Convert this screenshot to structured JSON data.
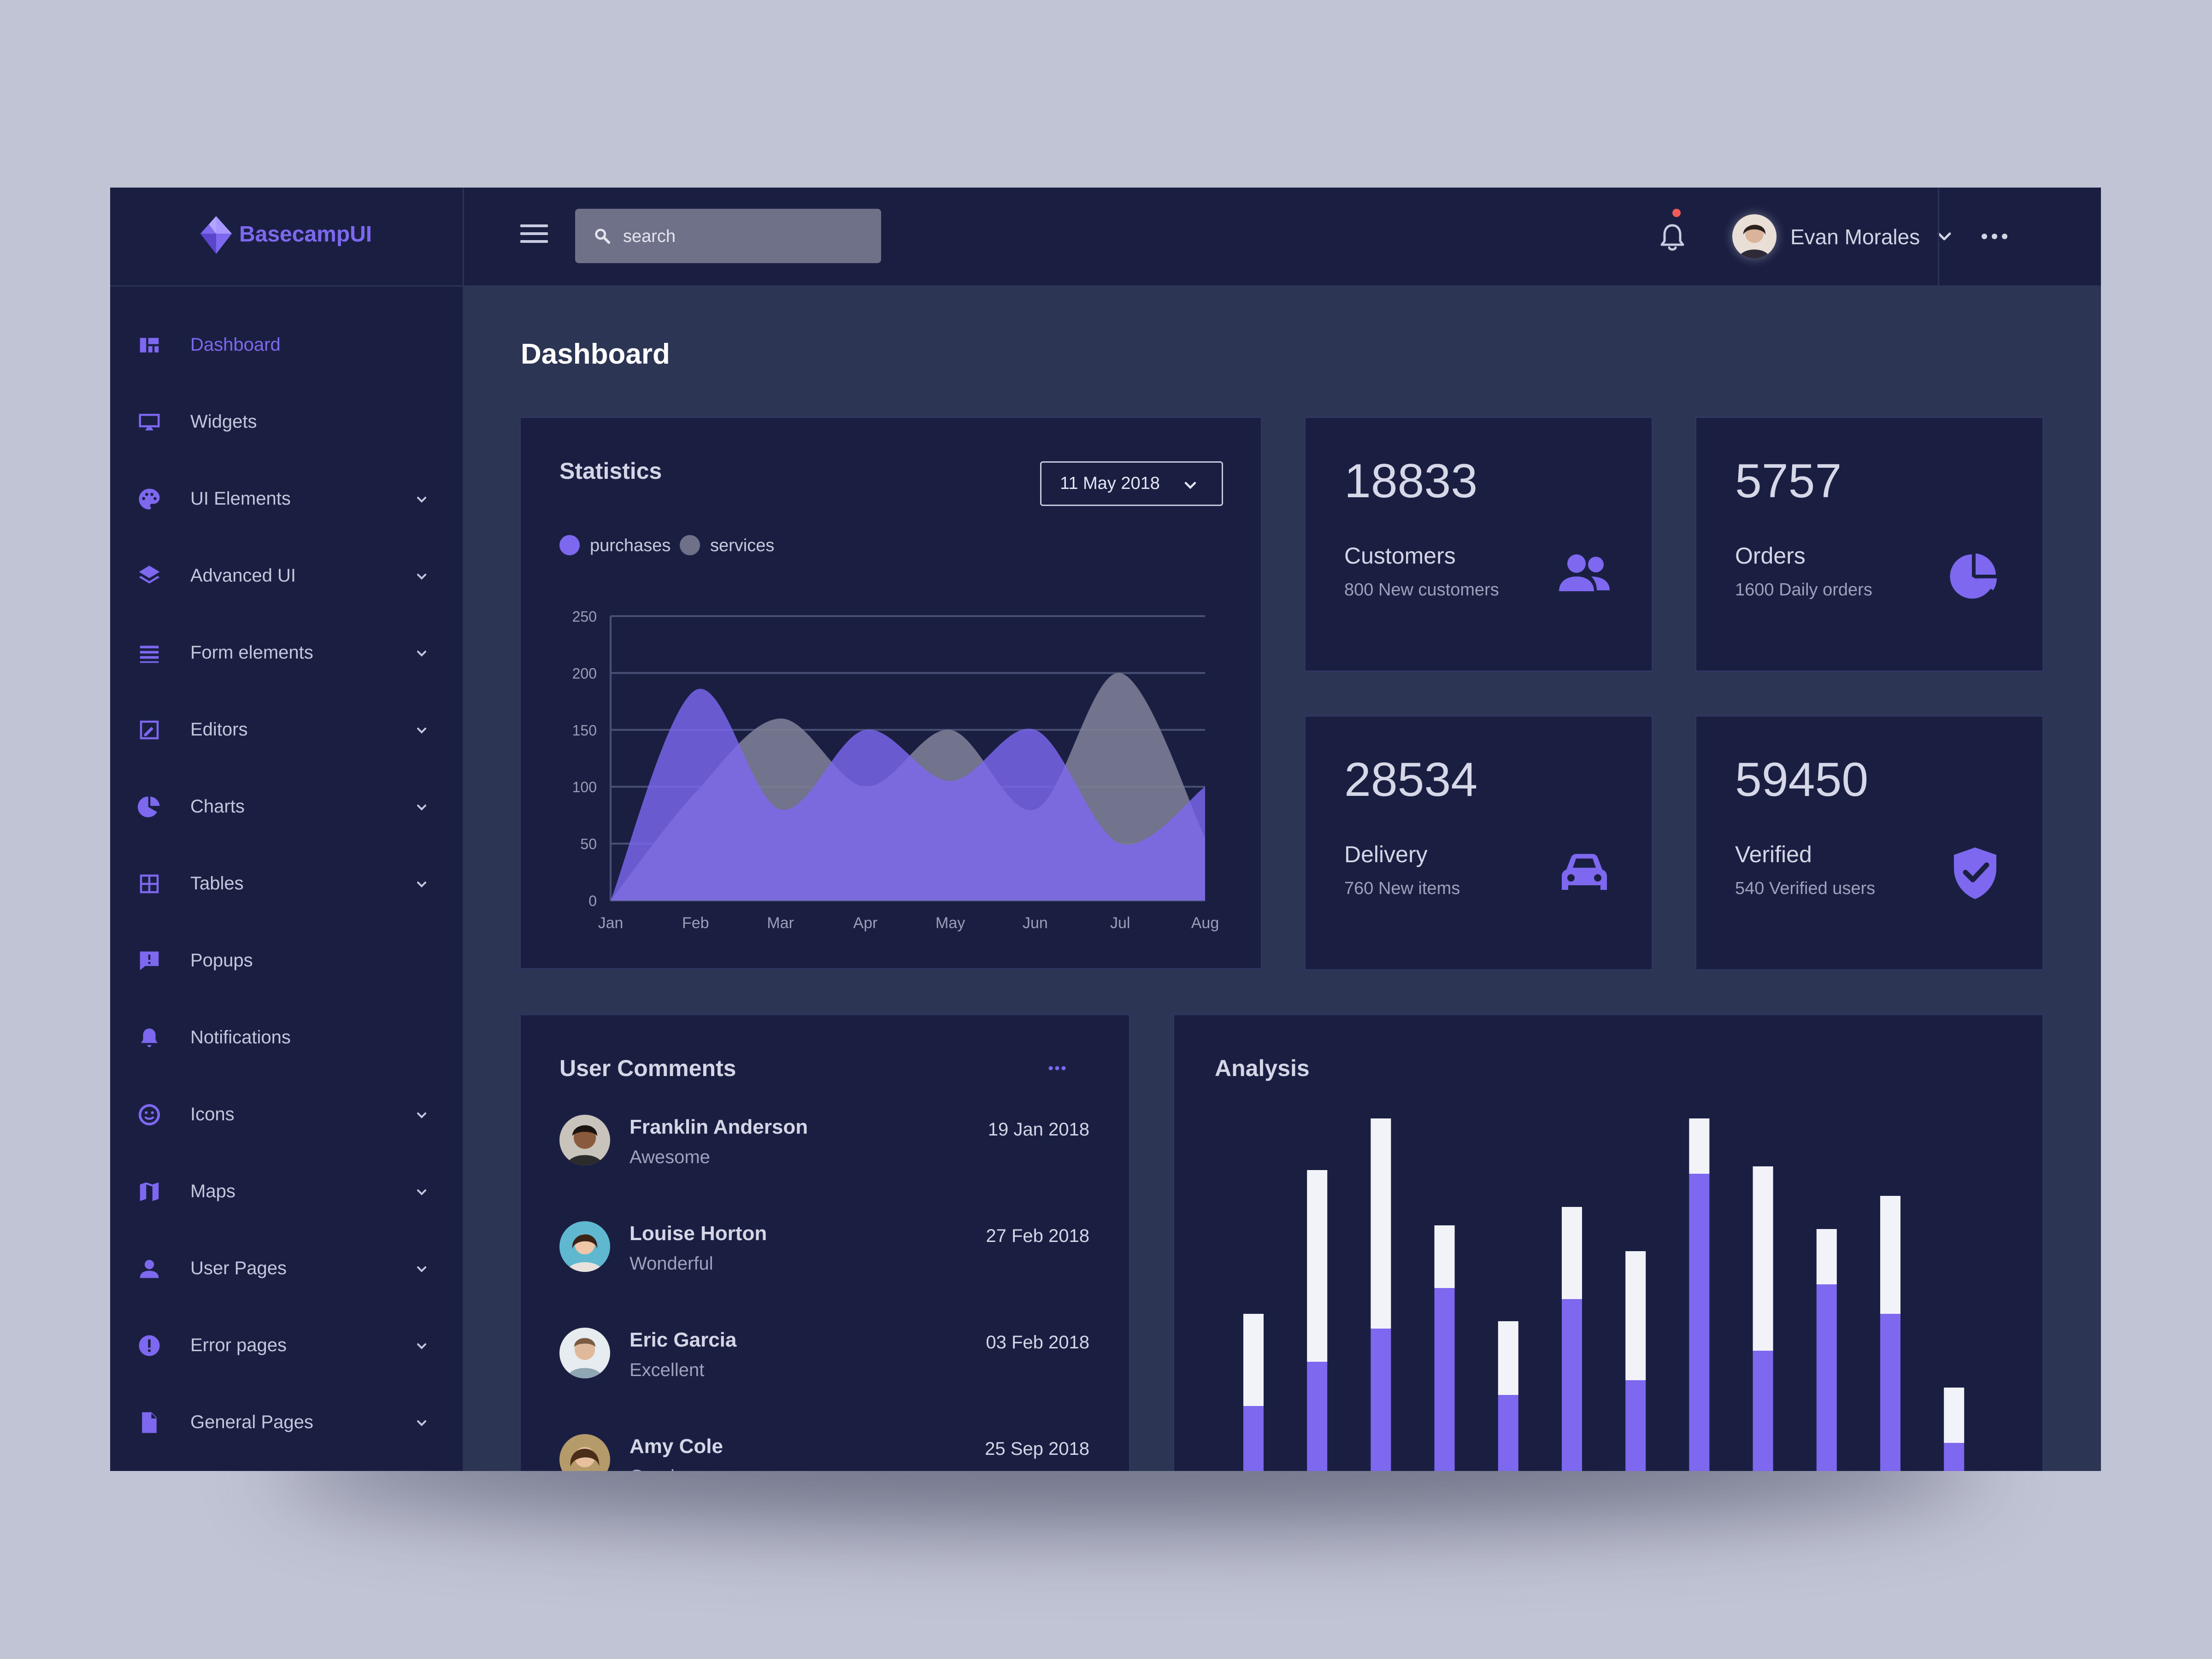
{
  "brand": {
    "name": "BasecampUI"
  },
  "search": {
    "placeholder": "search"
  },
  "user": {
    "name": "Evan Morales"
  },
  "sidebar": {
    "items": [
      {
        "label": "Dashboard",
        "icon": "dashboard-icon",
        "active": true,
        "expandable": false
      },
      {
        "label": "Widgets",
        "icon": "monitor-icon",
        "expandable": false
      },
      {
        "label": "UI Elements",
        "icon": "palette-icon",
        "expandable": true
      },
      {
        "label": "Advanced UI",
        "icon": "layers-icon",
        "expandable": true
      },
      {
        "label": "Form elements",
        "icon": "list-icon",
        "expandable": true
      },
      {
        "label": "Editors",
        "icon": "edit-icon",
        "expandable": true
      },
      {
        "label": "Charts",
        "icon": "pie-chart-icon",
        "expandable": true
      },
      {
        "label": "Tables",
        "icon": "table-icon",
        "expandable": true
      },
      {
        "label": "Popups",
        "icon": "message-alert-icon",
        "expandable": false
      },
      {
        "label": "Notifications",
        "icon": "bell-icon",
        "expandable": false
      },
      {
        "label": "Icons",
        "icon": "smiley-icon",
        "expandable": true
      },
      {
        "label": "Maps",
        "icon": "map-icon",
        "expandable": true
      },
      {
        "label": "User Pages",
        "icon": "user-icon",
        "expandable": true
      },
      {
        "label": "Error pages",
        "icon": "error-icon",
        "expandable": true
      },
      {
        "label": "General Pages",
        "icon": "file-icon",
        "expandable": true
      }
    ]
  },
  "page": {
    "title": "Dashboard"
  },
  "statistics": {
    "title": "Statistics",
    "date": "11 May 2018",
    "legend": [
      {
        "label": "purchases",
        "color": "#7d68ef"
      },
      {
        "label": "services",
        "color": "#6f7189"
      }
    ]
  },
  "stats": [
    {
      "value": "18833",
      "label": "Customers",
      "sub": "800 New customers",
      "icon": "users-icon"
    },
    {
      "value": "5757",
      "label": "Orders",
      "sub": "1600 Daily orders",
      "icon": "pie-chart-icon"
    },
    {
      "value": "28534",
      "label": "Delivery",
      "sub": "760 New items",
      "icon": "car-icon"
    },
    {
      "value": "59450",
      "label": "Verified",
      "sub": "540 Verified users",
      "icon": "shield-check-icon"
    }
  ],
  "comments": {
    "title": "User Comments",
    "items": [
      {
        "name": "Franklin Anderson",
        "text": "Awesome",
        "date": "19 Jan 2018"
      },
      {
        "name": "Louise Horton",
        "text": "Wonderful",
        "date": "27 Feb 2018"
      },
      {
        "name": "Eric Garcia",
        "text": "Excellent",
        "date": "03 Feb 2018"
      },
      {
        "name": "Amy Cole",
        "text": "Good",
        "date": "25 Sep 2018"
      }
    ]
  },
  "analysis": {
    "title": "Analysis"
  },
  "colors": {
    "accent": "#7d68ef",
    "panel": "#1a1f42",
    "background": "#2c3553",
    "services": "#6f7189",
    "bar_top": "#f2f3f8"
  },
  "chart_data": [
    {
      "type": "area",
      "title": "Statistics",
      "categories": [
        "Jan",
        "Feb",
        "Mar",
        "Apr",
        "May",
        "Jun",
        "Jul",
        "Aug"
      ],
      "ylim": [
        0,
        250
      ],
      "yticks": [
        0,
        50,
        100,
        150,
        200,
        250
      ],
      "grid": true,
      "legend": "top-left",
      "series": [
        {
          "name": "purchases",
          "color": "#7d68ef",
          "values": [
            0,
            185,
            80,
            150,
            105,
            150,
            50,
            100
          ]
        },
        {
          "name": "services",
          "color": "#6f7189",
          "values": [
            0,
            95,
            160,
            100,
            150,
            80,
            200,
            55
          ]
        }
      ]
    },
    {
      "type": "bar",
      "title": "Analysis",
      "stacked": true,
      "grid": false,
      "ylim": [
        0,
        100
      ],
      "series": [
        {
          "name": "",
          "color": "#7d68ef",
          "values": [
            19,
            31,
            40,
            51,
            22,
            48,
            26,
            82,
            34,
            52,
            44,
            9
          ]
        },
        {
          "name": "",
          "color": "#f2f3f8",
          "values": [
            25,
            52,
            57,
            17,
            20,
            25,
            35,
            15,
            50,
            15,
            32,
            15
          ]
        }
      ]
    }
  ]
}
